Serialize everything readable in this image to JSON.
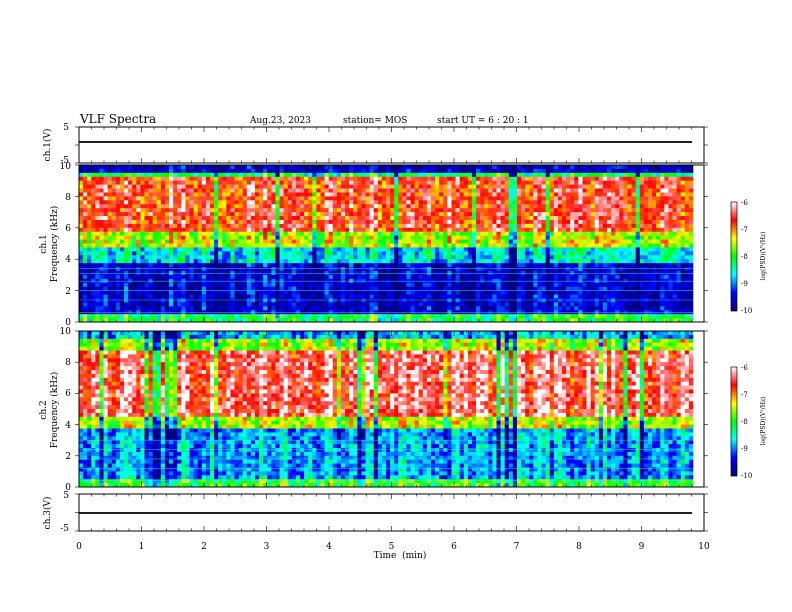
{
  "header": {
    "title": "VLF Spectra",
    "date": "Aug.23, 2023",
    "station": "station= MOS",
    "start": "start  UT  =   6  : 20 : 1"
  },
  "chart_data": [
    {
      "panel": "ch1-voltage",
      "type": "line",
      "ylabel": "ch.1(V)",
      "xlim": [
        0,
        10
      ],
      "ylim": [
        -5,
        5
      ],
      "yticks": [
        "5",
        "-5"
      ],
      "series": [
        {
          "x": [
            0,
            9.8
          ],
          "y": [
            0.8,
            0.8
          ]
        }
      ]
    },
    {
      "panel": "ch1-spectrogram",
      "type": "heatmap",
      "ylabel": "ch.1\nFrequency (kHz)",
      "xlim": [
        0,
        10
      ],
      "ylim": [
        0,
        10
      ],
      "yticks": [
        "0",
        "2",
        "4",
        "6",
        "8",
        "10"
      ],
      "colorbar": {
        "label": "log(PSD)(V²/Hz)",
        "range": [
          -10,
          -6
        ],
        "ticks": [
          "-6",
          "-7",
          "-8",
          "-9",
          "-10"
        ],
        "colors": [
          "#000080",
          "#0000ff",
          "#00ffff",
          "#00ff00",
          "#ffff00",
          "#ff0000",
          "#ffffff"
        ]
      }
    },
    {
      "panel": "ch2-spectrogram",
      "type": "heatmap",
      "ylabel": "ch.2\nFrequency (kHz)",
      "xlim": [
        0,
        10
      ],
      "ylim": [
        0,
        10
      ],
      "yticks": [
        "0",
        "2",
        "4",
        "6",
        "8",
        "10"
      ],
      "colorbar": {
        "label": "log(PSD)(V²/Hz)",
        "range": [
          -10,
          -6
        ],
        "ticks": [
          "-6",
          "-7",
          "-8",
          "-9",
          "-10"
        ],
        "colors": [
          "#000080",
          "#0000ff",
          "#00ffff",
          "#00ff00",
          "#ffff00",
          "#ff0000",
          "#ffffff"
        ]
      }
    },
    {
      "panel": "ch3-voltage",
      "type": "line",
      "ylabel": "ch.3(V)",
      "xlim": [
        0,
        10
      ],
      "ylim": [
        -5,
        5
      ],
      "yticks": [
        "5",
        "-5"
      ],
      "xlabel": "Time  (min)",
      "xticks": [
        "0",
        "1",
        "2",
        "3",
        "4",
        "5",
        "6",
        "7",
        "8",
        "9",
        "10"
      ],
      "series": [
        {
          "x": [
            0,
            9.8
          ],
          "y": [
            -1.0,
            -1.0
          ]
        }
      ]
    }
  ]
}
